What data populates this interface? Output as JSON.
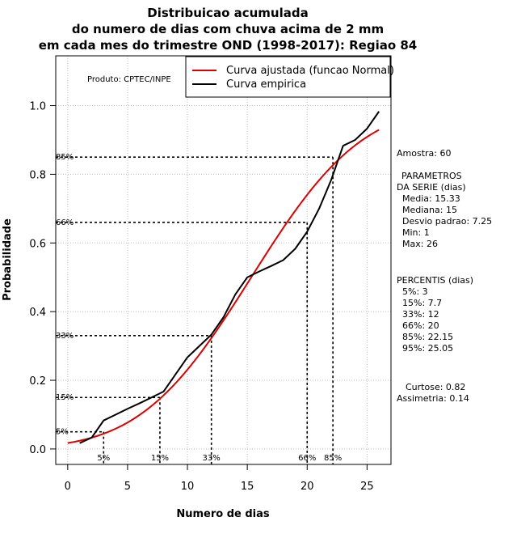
{
  "chart_data": {
    "type": "line",
    "title_lines": [
      "Distribuicao acumulada",
      "do numero de dias com chuva acima de 2 mm",
      "em cada mes do trimestre OND (1998-2017): Regiao 84"
    ],
    "xlabel": "Numero de dias",
    "ylabel": "Probabilidade",
    "xlim": [
      -1,
      27
    ],
    "ylim": [
      -0.045,
      1.145
    ],
    "x_ticks": [
      0,
      5,
      10,
      15,
      20,
      25
    ],
    "x_tick_labels": [
      "0",
      "5",
      "10",
      "15",
      "20",
      "25"
    ],
    "y_ticks": [
      0.0,
      0.2,
      0.4,
      0.6,
      0.8,
      1.0
    ],
    "y_tick_labels": [
      "0.0",
      "0.2",
      "0.4",
      "0.6",
      "0.8",
      "1.0"
    ],
    "grid": true,
    "product_label": "Produto: CPTEC/INPE",
    "legend": {
      "position": "top-right",
      "entries": [
        {
          "label": "Curva ajustada (funcao Normal)",
          "color": "#dd0000"
        },
        {
          "label": "Curva empirica",
          "color": "#000000"
        }
      ]
    },
    "series": [
      {
        "name": "Curva ajustada (funcao Normal)",
        "color": "#dd0000",
        "distribution": {
          "mean": 15.33,
          "sd": 7.25
        },
        "x_range": [
          0,
          26
        ]
      },
      {
        "name": "Curva empirica",
        "color": "#000000",
        "x": [
          1,
          2,
          3,
          4,
          5,
          6,
          7,
          8,
          9,
          10,
          11,
          12,
          13,
          14,
          15,
          16,
          17,
          18,
          19,
          20,
          21,
          22,
          23,
          24,
          25,
          26
        ],
        "y": [
          0.017,
          0.033,
          0.083,
          0.1,
          0.117,
          0.133,
          0.15,
          0.167,
          0.217,
          0.267,
          0.3,
          0.333,
          0.383,
          0.45,
          0.5,
          0.517,
          0.533,
          0.55,
          0.583,
          0.633,
          0.7,
          0.783,
          0.883,
          0.9,
          0.933,
          0.983
        ]
      }
    ],
    "percentile_markers": [
      {
        "label": "5%",
        "prob": 0.05,
        "value": 3
      },
      {
        "label": "15%",
        "prob": 0.15,
        "value": 7.7
      },
      {
        "label": "33%",
        "prob": 0.33,
        "value": 12
      },
      {
        "label": "66%",
        "prob": 0.66,
        "value": 20
      },
      {
        "label": "85%",
        "prob": 0.85,
        "value": 22.15
      }
    ]
  },
  "side_panel": {
    "amostra": "Amostra: 60",
    "param_title_1": "PARAMETROS",
    "param_title_2": "DA SERIE (dias)",
    "params": [
      "Media: 15.33",
      "Mediana: 15",
      "Desvio padrao: 7.25",
      "Min: 1",
      "Max: 26"
    ],
    "percentis_title": "PERCENTIS (dias)",
    "percentis": [
      "5%: 3",
      "15%: 7.7",
      "33%: 12",
      "66%: 20",
      "85%: 22.15",
      "95%: 25.05"
    ],
    "curtose": "Curtose: 0.82",
    "assimetria": "Assimetria: 0.14"
  }
}
